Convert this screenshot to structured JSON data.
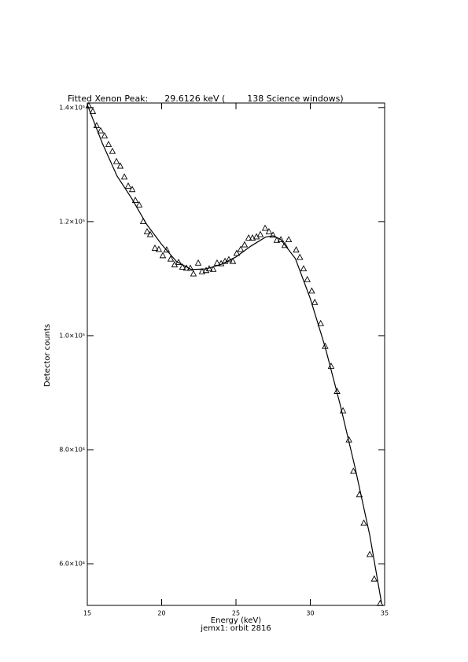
{
  "chart_data": {
    "type": "scatter",
    "title": "Fitted Xenon Peak:      29.6126 keV (        138 Science windows)",
    "x_label": "Energy (keV)",
    "y_label": "Detector counts",
    "subtitle": "jemx1: orbit 2816",
    "xlim": [
      15,
      35
    ],
    "ylim": [
      52700,
      140800
    ],
    "xticks": [
      15,
      20,
      25,
      30,
      35
    ],
    "yticks": [
      {
        "value": 60000,
        "label": "6.0×10⁴"
      },
      {
        "value": 80000,
        "label": "8.0×10⁴"
      },
      {
        "value": 100000,
        "label": "1.0×10⁵"
      },
      {
        "value": 120000,
        "label": "1.2×10⁵"
      },
      {
        "value": 140000,
        "label": "1.4×10⁵"
      }
    ],
    "color": "#000000",
    "series": [
      {
        "marker": "triangle",
        "x": [
          15.1,
          15.37,
          15.63,
          15.9,
          16.16,
          16.43,
          16.69,
          16.96,
          17.22,
          17.49,
          17.75,
          18.02,
          18.23,
          18.49,
          18.76,
          19.02,
          19.23,
          19.55,
          19.81,
          20.08,
          20.34,
          20.61,
          20.87,
          21.14,
          21.4,
          21.67,
          21.93,
          22.14,
          22.46,
          22.72,
          22.99,
          23.2,
          23.47,
          23.73,
          24.0,
          24.26,
          24.52,
          24.79,
          25.05,
          25.32,
          25.58,
          25.85,
          26.11,
          26.38,
          26.64,
          26.96,
          27.22,
          27.49,
          27.75,
          28.02,
          28.28,
          28.55,
          29.05,
          29.3,
          29.55,
          29.8,
          30.1,
          30.3,
          30.7,
          31.0,
          31.4,
          31.8,
          32.2,
          32.6,
          32.9,
          33.3,
          33.6,
          34.0,
          34.3,
          34.7
        ],
        "values": [
          140300,
          139300,
          136800,
          135900,
          135000,
          133500,
          132300,
          130500,
          129700,
          127800,
          126200,
          125600,
          123700,
          122900,
          120000,
          118200,
          117700,
          115300,
          115100,
          114000,
          115000,
          113400,
          112400,
          112800,
          112000,
          111800,
          111800,
          110800,
          112700,
          111200,
          111400,
          111700,
          111600,
          112700,
          112600,
          113000,
          113300,
          113000,
          114400,
          115100,
          115900,
          117100,
          117100,
          117300,
          117700,
          118800,
          118200,
          117600,
          116700,
          116800,
          115800,
          116800,
          115000,
          113700,
          111700,
          109800,
          107800,
          105800,
          102100,
          98100,
          94600,
          90200,
          86800,
          81700,
          76200,
          72100,
          67100,
          61600,
          57300,
          53000
        ]
      },
      {
        "marker": "line",
        "x": [
          15,
          16,
          17,
          18,
          19,
          20,
          21,
          22,
          23,
          24,
          25,
          26,
          27,
          27.5,
          28,
          29,
          30,
          31,
          32,
          33,
          34,
          34.8
        ],
        "values": [
          140500,
          133800,
          128000,
          124000,
          119500,
          116000,
          113000,
          111600,
          111700,
          112500,
          113800,
          115700,
          117300,
          117500,
          116900,
          113500,
          106500,
          98000,
          88000,
          77000,
          65000,
          53000
        ]
      }
    ]
  }
}
